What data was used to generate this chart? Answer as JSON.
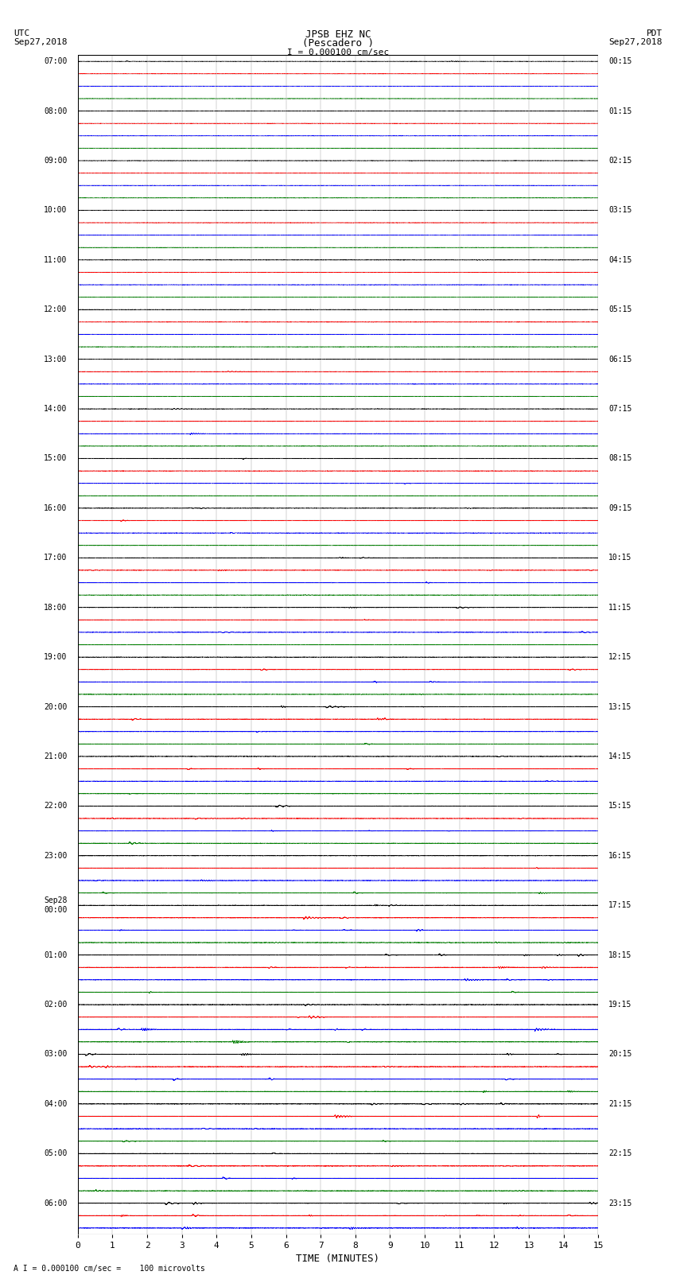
{
  "title_line1": "JPSB EHZ NC",
  "title_line2": "(Pescadero )",
  "scale_text": "I = 0.000100 cm/sec",
  "left_header_line1": "UTC",
  "left_header_line2": "Sep27,2018",
  "right_header_line1": "PDT",
  "right_header_line2": "Sep27,2018",
  "bottom_label": "TIME (MINUTES)",
  "bottom_note": "A I = 0.000100 cm/sec =    100 microvolts",
  "x_ticks": [
    0,
    1,
    2,
    3,
    4,
    5,
    6,
    7,
    8,
    9,
    10,
    11,
    12,
    13,
    14,
    15
  ],
  "trace_colors": [
    "black",
    "red",
    "blue",
    "green"
  ],
  "background_color": "white",
  "grid_color": "#999999",
  "left_labels": [
    "07:00",
    "",
    "",
    "",
    "08:00",
    "",
    "",
    "",
    "09:00",
    "",
    "",
    "",
    "10:00",
    "",
    "",
    "",
    "11:00",
    "",
    "",
    "",
    "12:00",
    "",
    "",
    "",
    "13:00",
    "",
    "",
    "",
    "14:00",
    "",
    "",
    "",
    "15:00",
    "",
    "",
    "",
    "16:00",
    "",
    "",
    "",
    "17:00",
    "",
    "",
    "",
    "18:00",
    "",
    "",
    "",
    "19:00",
    "",
    "",
    "",
    "20:00",
    "",
    "",
    "",
    "21:00",
    "",
    "",
    "",
    "22:00",
    "",
    "",
    "",
    "23:00",
    "",
    "",
    "",
    "Sep28\n00:00",
    "",
    "",
    "",
    "01:00",
    "",
    "",
    "",
    "02:00",
    "",
    "",
    "",
    "03:00",
    "",
    "",
    "",
    "04:00",
    "",
    "",
    "",
    "05:00",
    "",
    "",
    "",
    "06:00",
    "",
    ""
  ],
  "right_labels": [
    "00:15",
    "",
    "",
    "",
    "01:15",
    "",
    "",
    "",
    "02:15",
    "",
    "",
    "",
    "03:15",
    "",
    "",
    "",
    "04:15",
    "",
    "",
    "",
    "05:15",
    "",
    "",
    "",
    "06:15",
    "",
    "",
    "",
    "07:15",
    "",
    "",
    "",
    "08:15",
    "",
    "",
    "",
    "09:15",
    "",
    "",
    "",
    "10:15",
    "",
    "",
    "",
    "11:15",
    "",
    "",
    "",
    "12:15",
    "",
    "",
    "",
    "13:15",
    "",
    "",
    "",
    "14:15",
    "",
    "",
    "",
    "15:15",
    "",
    "",
    "",
    "16:15",
    "",
    "",
    "",
    "17:15",
    "",
    "",
    "",
    "18:15",
    "",
    "",
    "",
    "19:15",
    "",
    "",
    "",
    "20:15",
    "",
    "",
    "",
    "21:15",
    "",
    "",
    "",
    "22:15",
    "",
    "",
    "",
    "23:15",
    "",
    ""
  ]
}
